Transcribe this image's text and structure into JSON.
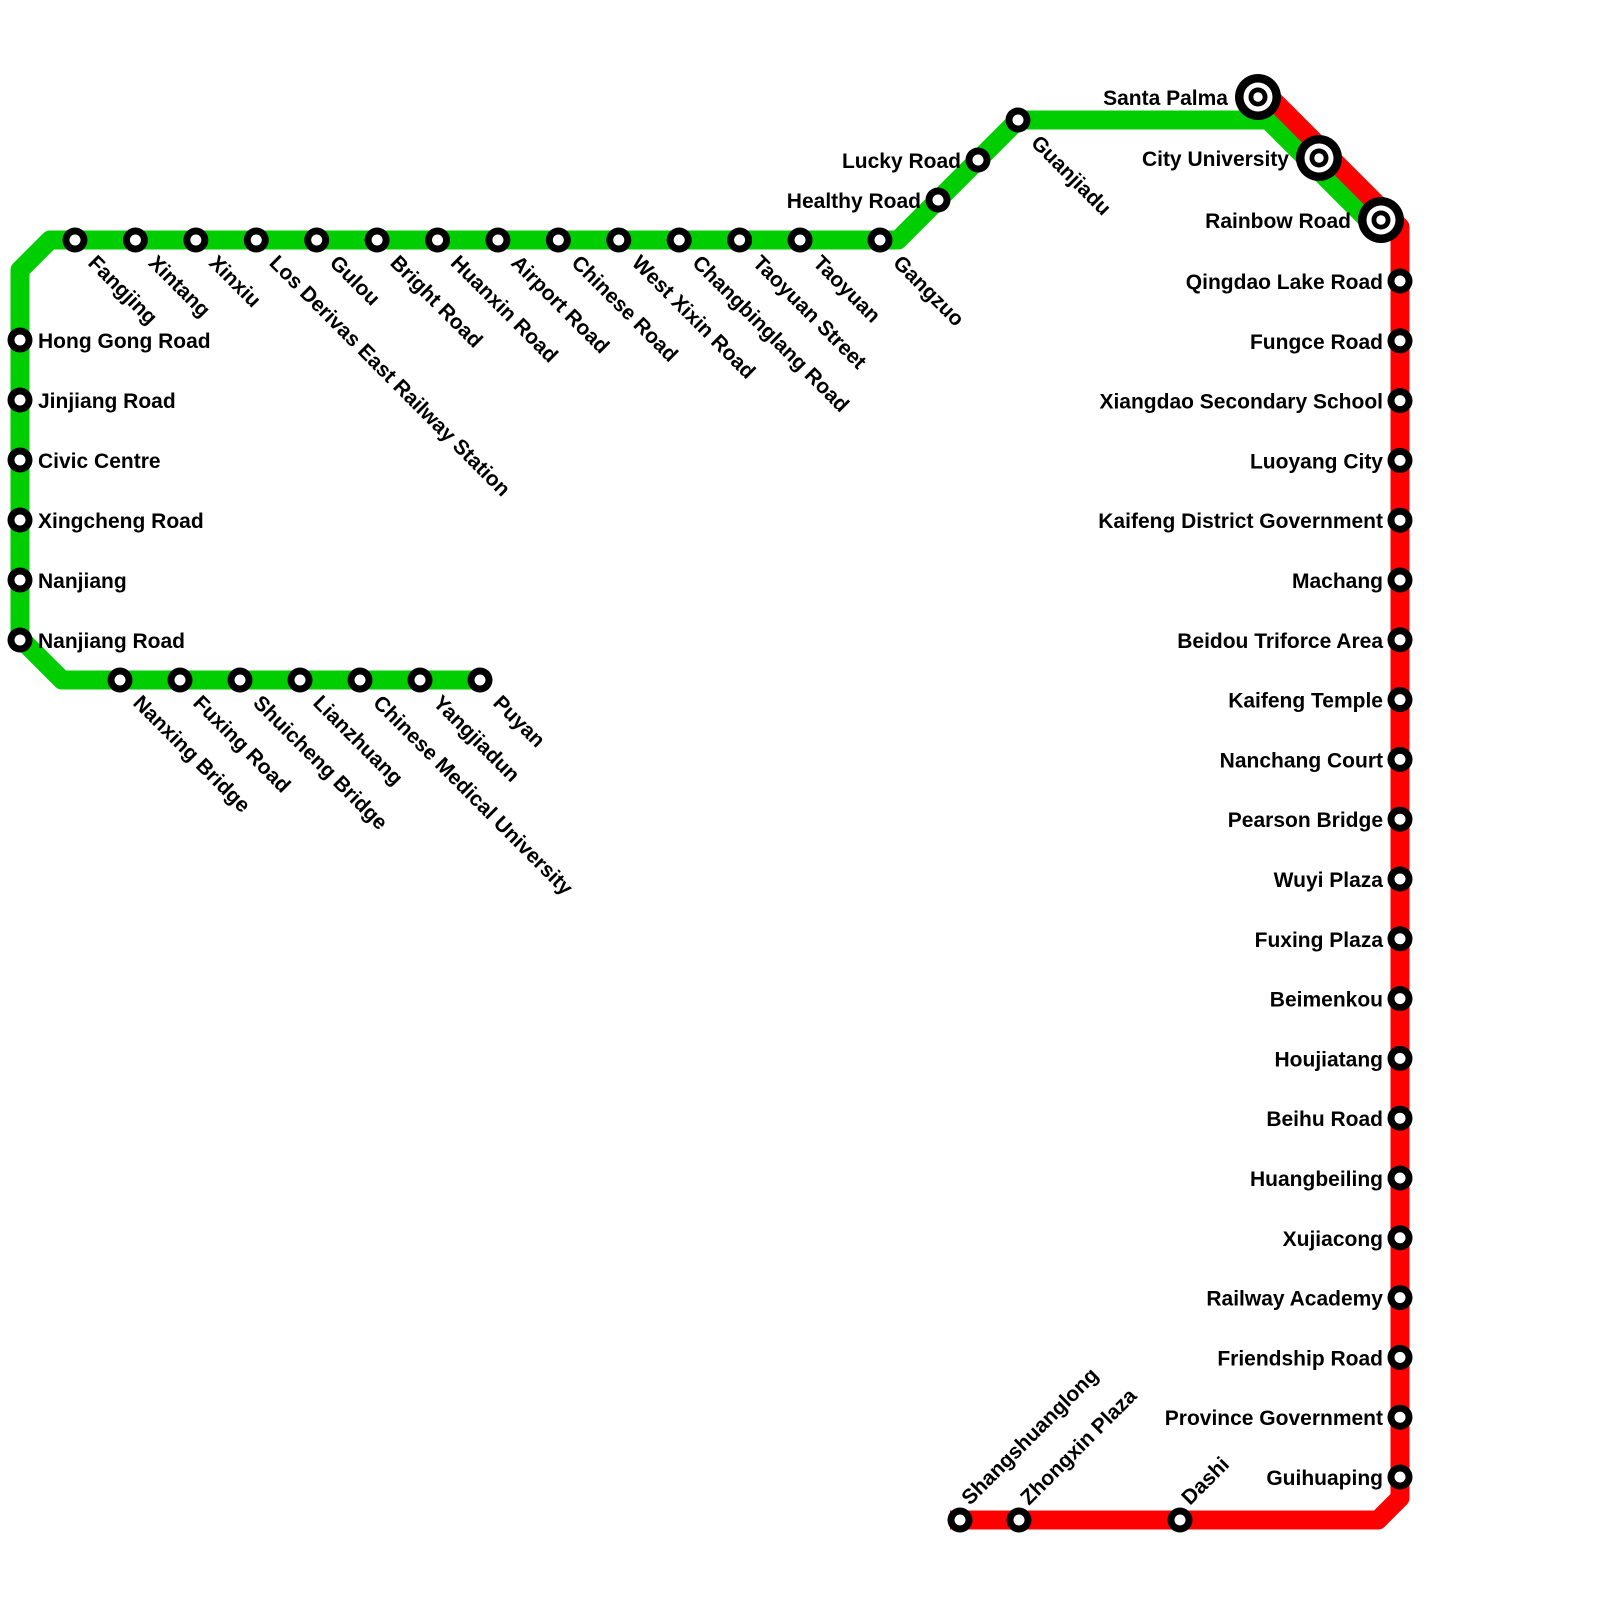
{
  "colors": {
    "green_line": "#00ce00",
    "red_line": "#ff0000",
    "station_ring": "#000000",
    "station_fill": "#ffffff",
    "label_text": "#000000",
    "background": "#ffffff"
  },
  "lines": {
    "green": {
      "id": "green-line",
      "groups": {
        "left_column": [
          "Hong Gong Road",
          "Jinjiang Road",
          "Civic Centre",
          "Xingcheng Road",
          "Nanjiang",
          "Nanjiang Road"
        ],
        "top_row": [
          "Fangjing",
          "Xintang",
          "Xinxiu",
          "Los Derivas East Railway Station",
          "Gulou",
          "Bright Road",
          "Huanxin Road",
          "Airport Road",
          "Chinese Road",
          "West Xixin Road",
          "Changbinglang Road",
          "Taoyuan Street",
          "Taoyuan"
        ],
        "corner_station": [
          "Gangzuo"
        ],
        "northeast_diagonal": [
          "Healthy Road",
          "Lucky Road"
        ],
        "upper_row": [
          "Guanjiadu"
        ],
        "south_branch": [
          "Nanxing Bridge",
          "Fuxing Road",
          "Shuicheng Bridge",
          "Lianzhuang",
          "Chinese Medical University",
          "Yangjiadun",
          "Puyan"
        ]
      }
    },
    "red": {
      "id": "red-line",
      "groups": {
        "east_column": [
          "Qingdao Lake Road",
          "Fungce Road",
          "Xiangdao Secondary School",
          "Luoyang City",
          "Kaifeng District Government",
          "Machang",
          "Beidou Triforce Area",
          "Kaifeng Temple",
          "Nanchang Court",
          "Pearson Bridge",
          "Wuyi Plaza",
          "Fuxing Plaza",
          "Beimenkou",
          "Houjiatang",
          "Beihu Road",
          "Huangbeiling",
          "Xujiacong",
          "Railway Academy",
          "Friendship Road",
          "Province Government",
          "Guihuaping"
        ],
        "bottom_row": [
          "Dashi",
          "Zhongxin Plaza",
          "Shangshuanglong"
        ]
      }
    },
    "interchanges": [
      "Santa Palma",
      "City University",
      "Rainbow Road"
    ]
  }
}
